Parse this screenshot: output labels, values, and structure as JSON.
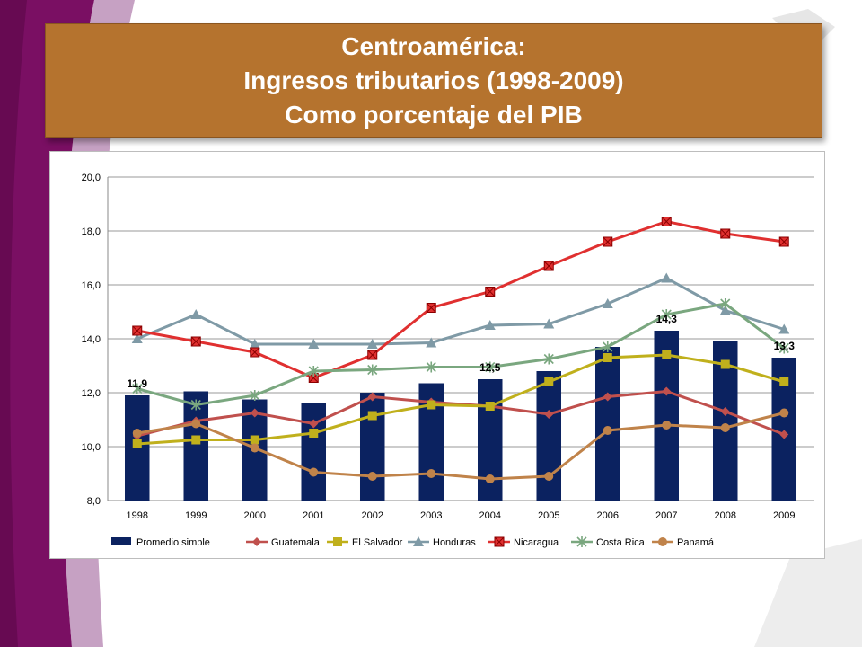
{
  "title_lines": [
    "Centroamérica:",
    "Ingresos tributarios (1998-2009)",
    "Como porcentaje del PIB"
  ],
  "chart_data": {
    "type": "bar+line",
    "categories": [
      "1998",
      "1999",
      "2000",
      "2001",
      "2002",
      "2003",
      "2004",
      "2005",
      "2006",
      "2007",
      "2008",
      "2009"
    ],
    "ylim": [
      8,
      20
    ],
    "yticks": [
      "8,0",
      "10,0",
      "12,0",
      "14,0",
      "16,0",
      "18,0",
      "20,0"
    ],
    "grid": true,
    "legend_position": "bottom",
    "bars": {
      "name": "Promedio simple",
      "color": "#0b2260",
      "values": [
        11.9,
        12.05,
        11.75,
        11.6,
        12.0,
        12.35,
        12.5,
        12.8,
        13.7,
        14.3,
        13.9,
        13.3
      ]
    },
    "bar_labels": [
      {
        "index": 0,
        "text": "11,9"
      },
      {
        "index": 6,
        "text": "12,5"
      },
      {
        "index": 9,
        "text": "14,3"
      },
      {
        "index": 11,
        "text": "13,3"
      }
    ],
    "series": [
      {
        "name": "Guatemala",
        "color": "#c0504d",
        "marker": "diamond",
        "values": [
          10.4,
          10.95,
          11.25,
          10.85,
          11.85,
          11.65,
          11.5,
          11.2,
          11.85,
          12.05,
          11.3,
          10.45
        ]
      },
      {
        "name": "El Salvador",
        "color": "#c0b01c",
        "marker": "square",
        "values": [
          10.1,
          10.25,
          10.25,
          10.5,
          11.15,
          11.55,
          11.5,
          12.4,
          13.3,
          13.4,
          13.05,
          12.4
        ]
      },
      {
        "name": "Honduras",
        "color": "#7f9aa6",
        "marker": "triangle",
        "values": [
          14.0,
          14.9,
          13.8,
          13.8,
          13.8,
          13.85,
          14.5,
          14.55,
          15.3,
          16.25,
          15.05,
          14.35
        ]
      },
      {
        "name": "Nicaragua",
        "color": "#e03030",
        "marker": "xsquare",
        "values": [
          14.3,
          13.9,
          13.5,
          12.55,
          13.4,
          15.15,
          15.75,
          16.7,
          17.6,
          18.35,
          17.9,
          17.6
        ]
      },
      {
        "name": "Costa Rica",
        "color": "#7aa77f",
        "marker": "star",
        "values": [
          12.15,
          11.55,
          11.9,
          12.8,
          12.85,
          12.95,
          12.95,
          13.25,
          13.7,
          14.9,
          15.3,
          13.65
        ]
      },
      {
        "name": "Panamá",
        "color": "#c0834a",
        "marker": "circle",
        "values": [
          10.5,
          10.85,
          9.95,
          9.05,
          8.9,
          9.0,
          8.8,
          8.9,
          10.6,
          10.8,
          10.7,
          11.25
        ]
      }
    ]
  }
}
